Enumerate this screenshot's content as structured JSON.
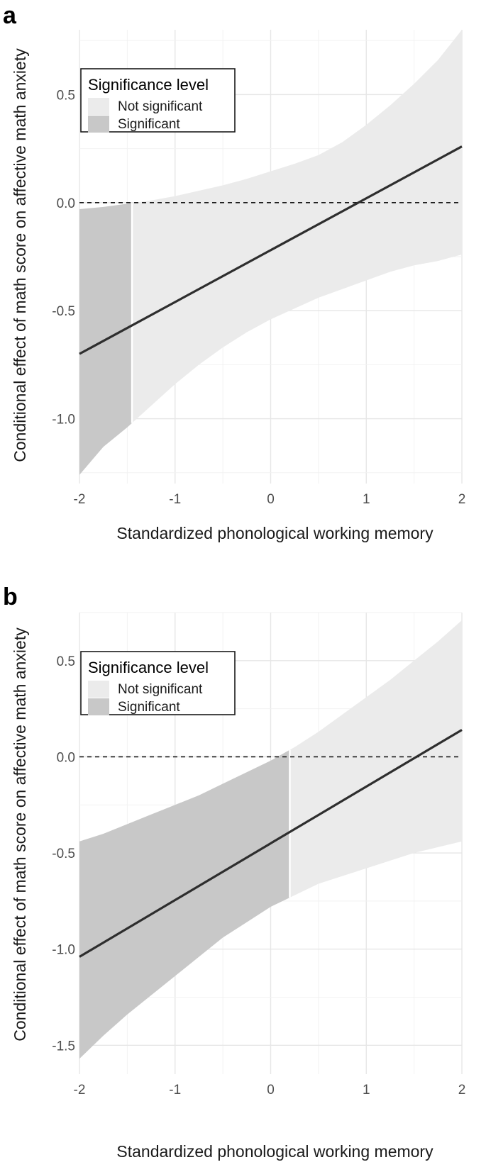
{
  "chart_data": [
    {
      "type": "area",
      "panel_label": "a",
      "xlabel": "Standardized phonological working memory",
      "ylabel": "Conditional effect of math score on affective math anxiety",
      "xlim": [
        -2,
        2
      ],
      "ylim": [
        -1.3,
        0.8
      ],
      "x_ticks": [
        -2,
        -1,
        0,
        1,
        2
      ],
      "x_tick_labels": [
        "-2",
        "-1",
        "0",
        "1",
        "2"
      ],
      "y_ticks": [
        -1.0,
        -0.5,
        0.0,
        0.5
      ],
      "y_tick_labels": [
        "-1.0",
        "-0.5",
        "0.0",
        "0.5"
      ],
      "reference_line_y": 0,
      "grid": true,
      "legend": {
        "title": "Significance level",
        "placement": "top-left",
        "items": [
          {
            "label": "Not significant",
            "color": "#ebebeb"
          },
          {
            "label": "Significant",
            "color": "#c8c8c8"
          }
        ]
      },
      "boundary_x": -1.45,
      "effect_line": {
        "x": [
          -2,
          2
        ],
        "y": [
          -0.7,
          0.26
        ],
        "color": "#2e2e2e"
      },
      "band": {
        "x": [
          -2.0,
          -1.75,
          -1.5,
          -1.25,
          -1.0,
          -0.75,
          -0.5,
          -0.25,
          0.0,
          0.25,
          0.5,
          0.75,
          1.0,
          1.25,
          1.5,
          1.75,
          2.0
        ],
        "lower": [
          -1.26,
          -1.13,
          -1.04,
          -0.94,
          -0.84,
          -0.75,
          -0.67,
          -0.6,
          -0.54,
          -0.49,
          -0.44,
          -0.4,
          -0.36,
          -0.32,
          -0.29,
          -0.27,
          -0.24
        ],
        "upper": [
          -0.03,
          -0.02,
          -0.005,
          0.01,
          0.03,
          0.055,
          0.08,
          0.11,
          0.145,
          0.18,
          0.22,
          0.28,
          0.36,
          0.45,
          0.55,
          0.66,
          0.8
        ]
      }
    },
    {
      "type": "area",
      "panel_label": "b",
      "xlabel": "Standardized phonological working memory",
      "ylabel": "Conditional effect of math score on affective math anxiety",
      "xlim": [
        -2,
        2
      ],
      "ylim": [
        -1.65,
        0.75
      ],
      "x_ticks": [
        -2,
        -1,
        0,
        1,
        2
      ],
      "x_tick_labels": [
        "-2",
        "-1",
        "0",
        "1",
        "2"
      ],
      "y_ticks": [
        -1.5,
        -1.0,
        -0.5,
        0.0,
        0.5
      ],
      "y_tick_labels": [
        "-1.5",
        "-1.0",
        "-0.5",
        "0.0",
        "0.5"
      ],
      "reference_line_y": 0,
      "grid": true,
      "legend": {
        "title": "Significance level",
        "placement": "top-left",
        "items": [
          {
            "label": "Not significant",
            "color": "#ebebeb"
          },
          {
            "label": "Significant",
            "color": "#c8c8c8"
          }
        ]
      },
      "boundary_x": 0.2,
      "effect_line": {
        "x": [
          -2,
          2
        ],
        "y": [
          -1.04,
          0.14
        ],
        "color": "#2e2e2e"
      },
      "band": {
        "x": [
          -2.0,
          -1.75,
          -1.5,
          -1.25,
          -1.0,
          -0.75,
          -0.5,
          -0.25,
          0.0,
          0.25,
          0.5,
          0.75,
          1.0,
          1.25,
          1.5,
          1.75,
          2.0
        ],
        "lower": [
          -1.57,
          -1.45,
          -1.34,
          -1.24,
          -1.14,
          -1.04,
          -0.94,
          -0.86,
          -0.78,
          -0.72,
          -0.66,
          -0.62,
          -0.58,
          -0.54,
          -0.5,
          -0.47,
          -0.44
        ],
        "upper": [
          -0.44,
          -0.4,
          -0.35,
          -0.3,
          -0.25,
          -0.2,
          -0.14,
          -0.08,
          -0.02,
          0.05,
          0.13,
          0.22,
          0.31,
          0.4,
          0.5,
          0.6,
          0.71
        ]
      }
    }
  ]
}
